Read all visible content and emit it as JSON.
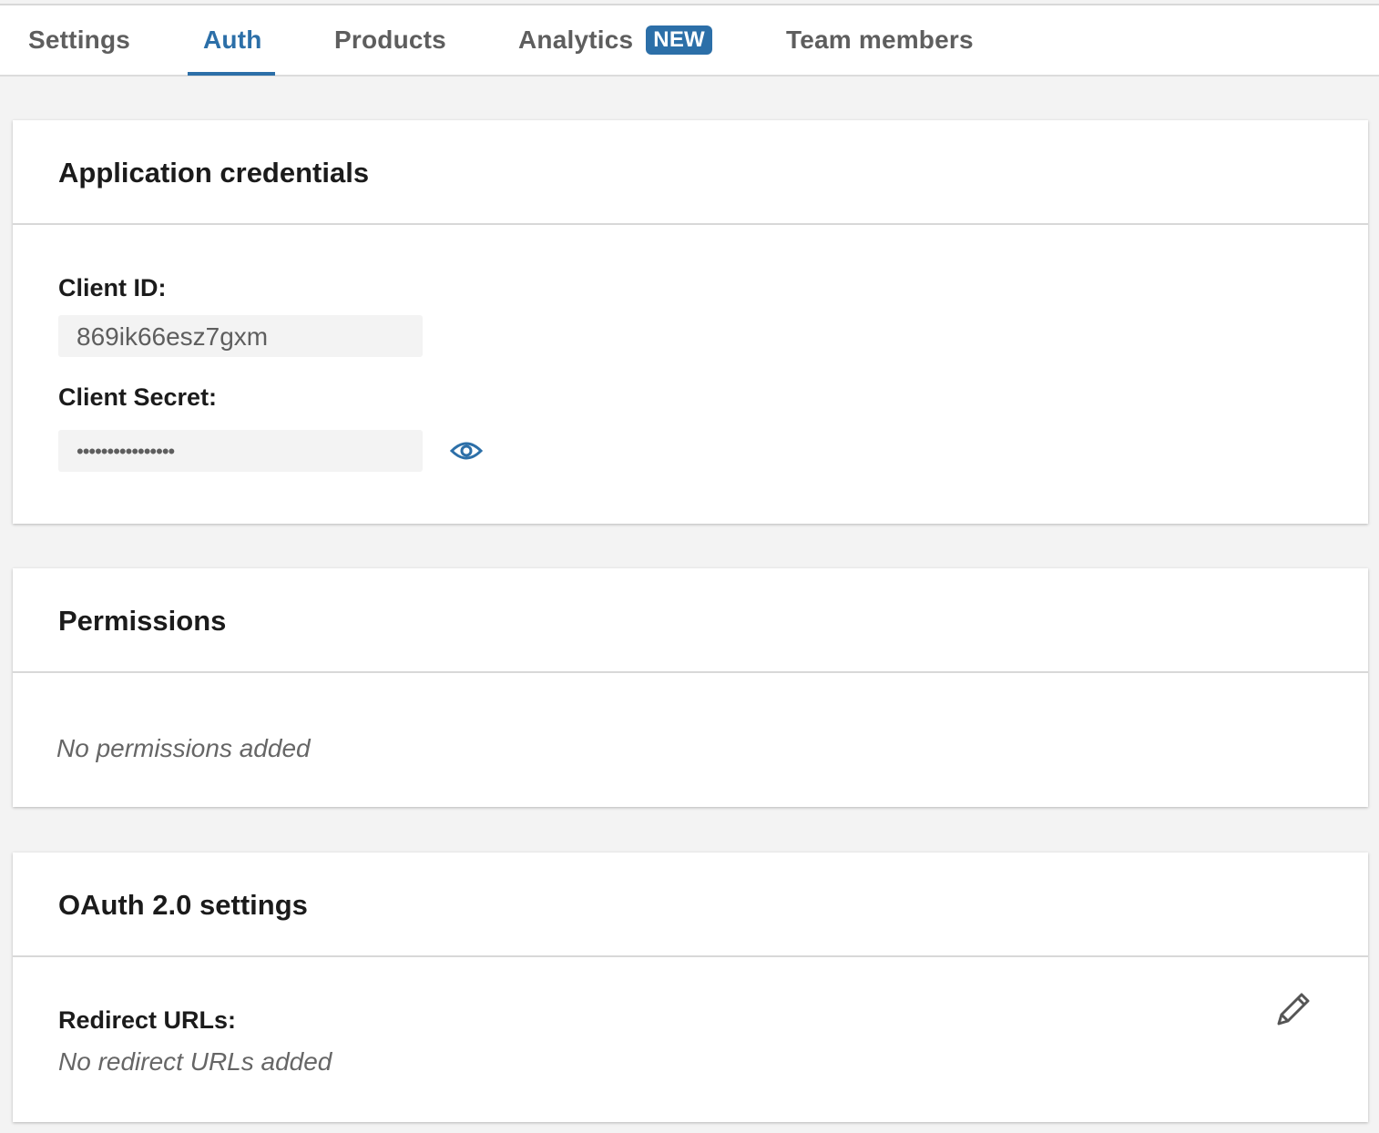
{
  "tabs": [
    {
      "label": "Settings"
    },
    {
      "label": "Auth",
      "active": true
    },
    {
      "label": "Products"
    },
    {
      "label": "Analytics",
      "badge": "NEW"
    },
    {
      "label": "Team members"
    }
  ],
  "credentials": {
    "title": "Application credentials",
    "client_id_label": "Client ID:",
    "client_id_value": "869ik66esz7gxm",
    "client_secret_label": "Client Secret:",
    "client_secret_value": "••••••••••••••••",
    "reveal_icon": "eye-icon"
  },
  "permissions": {
    "title": "Permissions",
    "empty_text": "No permissions added"
  },
  "oauth": {
    "title": "OAuth 2.0 settings",
    "redirect_label": "Redirect URLs:",
    "redirect_empty": "No redirect URLs added",
    "edit_icon": "pencil-icon"
  },
  "colors": {
    "accent": "#2c6fa8",
    "background": "#f3f3f3"
  }
}
